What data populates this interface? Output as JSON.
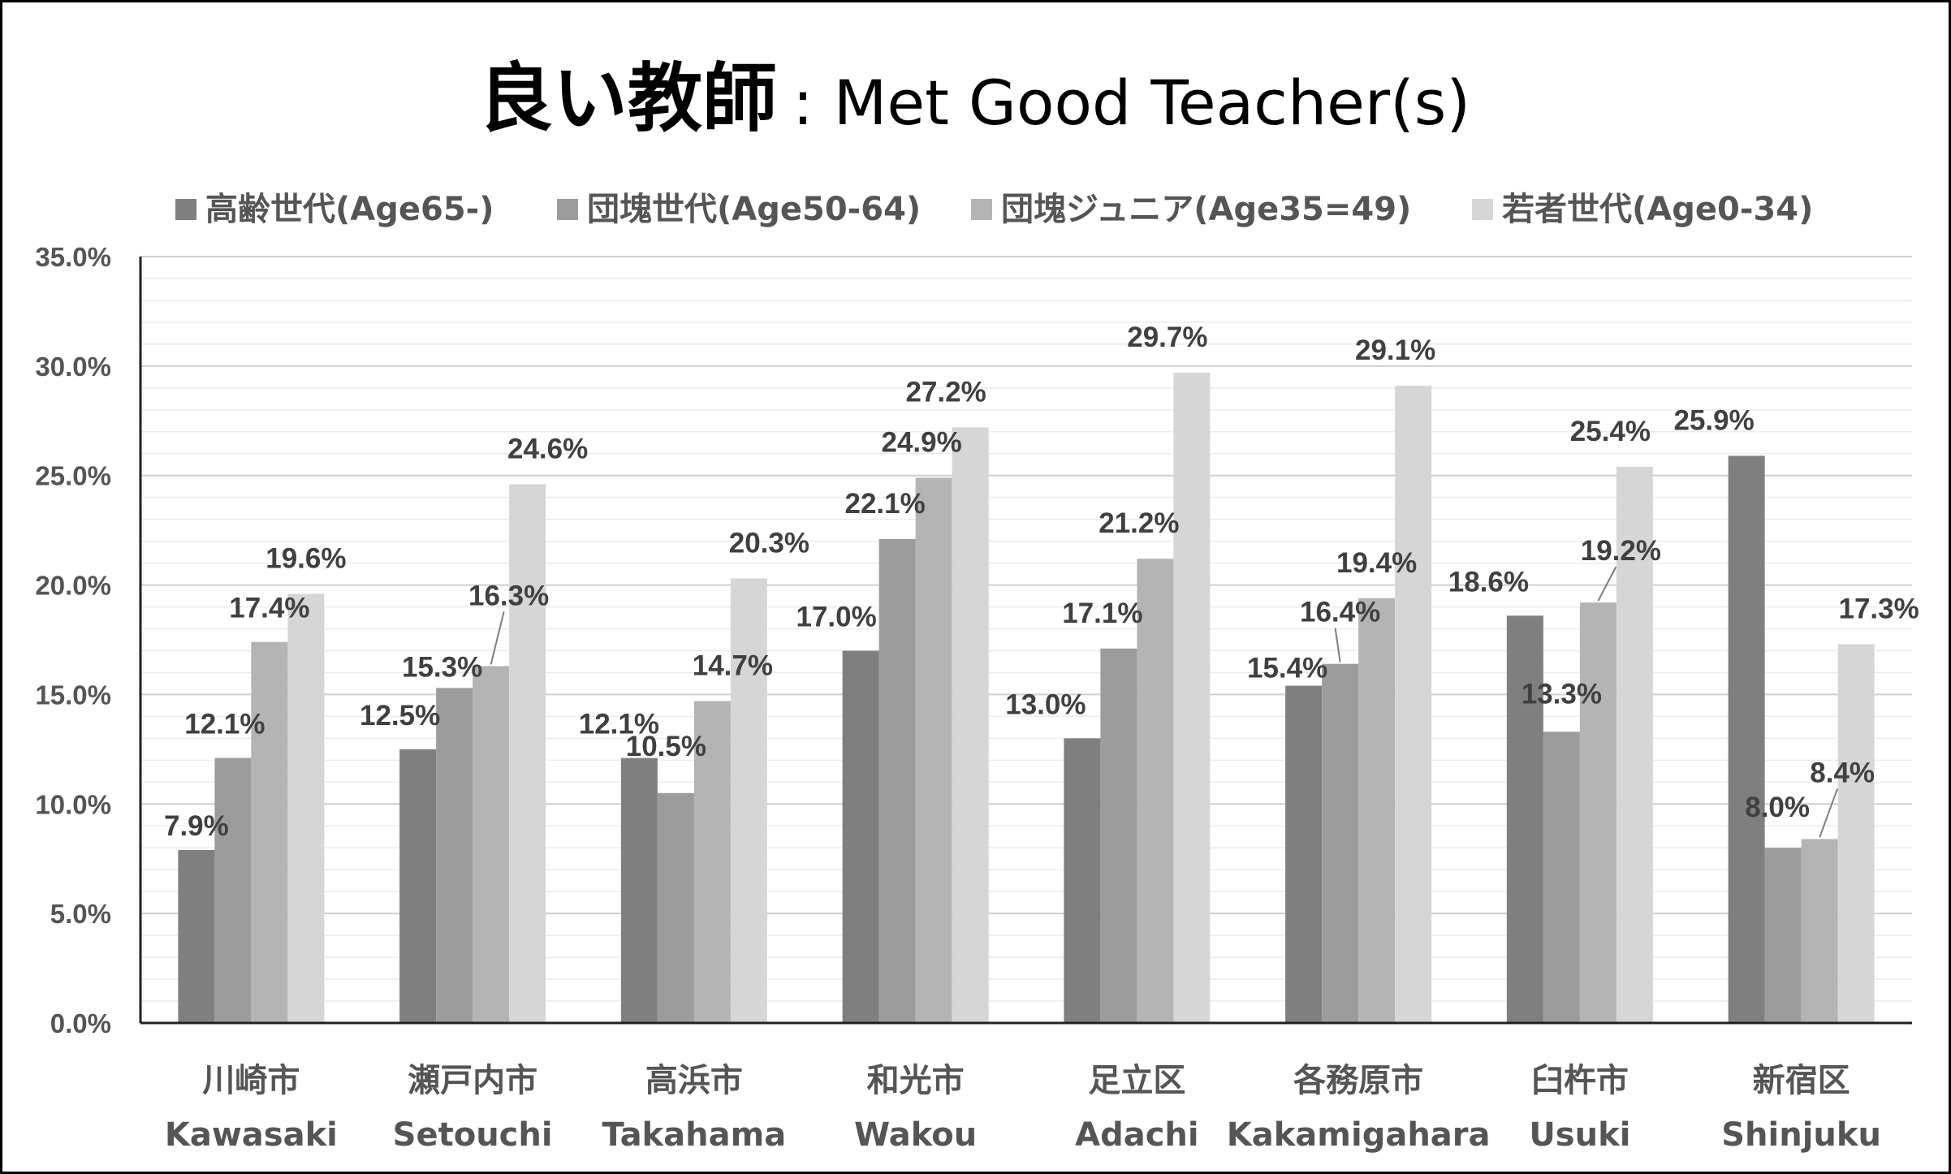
{
  "chart_data": {
    "type": "bar",
    "title_jp": "良い教師",
    "title_sep": ":",
    "title_en": "Met Good Teacher(s)",
    "categories": [
      "川崎市",
      "瀬戸内市",
      "高浜市",
      "和光市",
      "足立区",
      "各務原市",
      "臼杵市",
      "新宿区"
    ],
    "categories_en": [
      "Kawasaki",
      "Setouchi",
      "Takahama",
      "Wakou",
      "Adachi",
      "Kakamigahara",
      "Usuki",
      "Shinjuku"
    ],
    "series": [
      {
        "name": "高齢世代(Age65-)",
        "color": "#7f7f7f",
        "values": [
          7.9,
          12.5,
          12.1,
          17.0,
          13.0,
          15.4,
          18.6,
          25.9
        ]
      },
      {
        "name": "団塊世代(Age50-64)",
        "color": "#9c9c9c",
        "values": [
          12.1,
          15.3,
          10.5,
          22.1,
          17.1,
          16.4,
          13.3,
          8.0
        ]
      },
      {
        "name": "団塊ジュニア(Age35=49)",
        "color": "#b4b4b4",
        "values": [
          17.4,
          16.3,
          14.7,
          24.9,
          21.2,
          19.4,
          19.2,
          8.4
        ]
      },
      {
        "name": "若者世代(Age0-34)",
        "color": "#d6d6d6",
        "values": [
          19.6,
          24.6,
          20.3,
          27.2,
          29.7,
          29.1,
          25.4,
          17.3
        ]
      }
    ],
    "data_labels": [
      [
        "7.9%",
        "12.5%",
        "12.1%",
        "17.0%",
        "13.0%",
        "15.4%",
        "18.6%",
        "25.9%"
      ],
      [
        "12.1%",
        "15.3%",
        "10.5%",
        "22.1%",
        "17.1%",
        "16.4%",
        "13.3%",
        "8.0%"
      ],
      [
        "17.4%",
        "16.3%",
        "14.7%",
        "24.9%",
        "21.2%",
        "19.4%",
        "19.2%",
        "8.4%"
      ],
      [
        "19.6%",
        "24.6%",
        "20.3%",
        "27.2%",
        "29.7%",
        "29.1%",
        "25.4%",
        "17.3%"
      ]
    ],
    "y_ticks": [
      "0.0%",
      "5.0%",
      "10.0%",
      "15.0%",
      "20.0%",
      "25.0%",
      "30.0%",
      "35.0%"
    ],
    "ylim": [
      0,
      35
    ],
    "y_major_step": 5,
    "y_minor_step": 1,
    "grid": true,
    "legend_position": "top",
    "unit": "%"
  }
}
